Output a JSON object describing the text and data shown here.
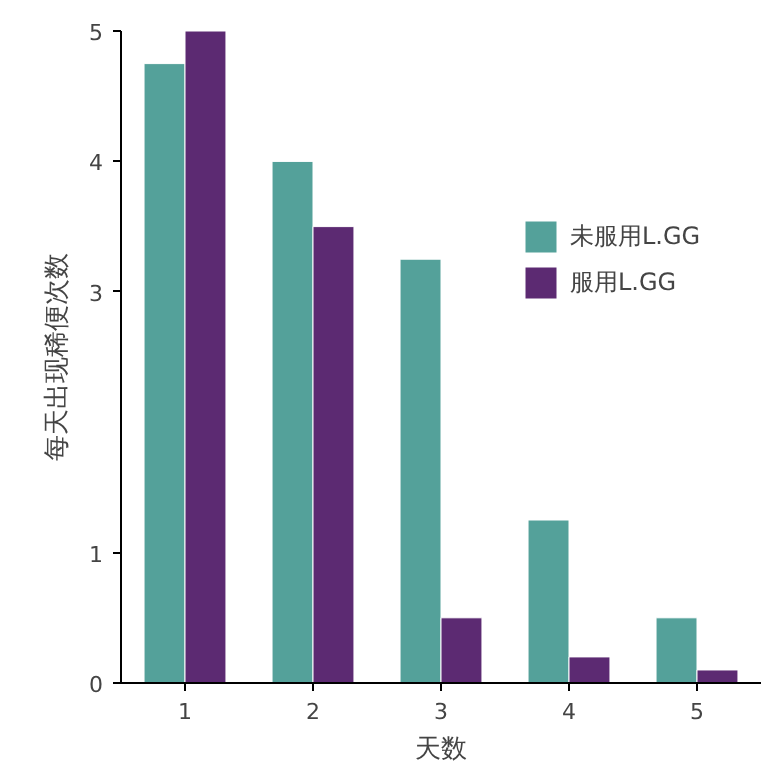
{
  "chart_data": {
    "type": "bar",
    "xlabel": "天数",
    "ylabel": "每天出现稀便次数",
    "categories": [
      "1",
      "2",
      "3",
      "4",
      "5"
    ],
    "series": [
      {
        "name": "未服用L.GG",
        "color": "#54a19a",
        "values": [
          4.75,
          4.0,
          3.25,
          1.25,
          0.5
        ]
      },
      {
        "name": "服用L.GG",
        "color": "#5c2a72",
        "values": [
          5.0,
          3.5,
          0.5,
          0.2,
          0.1
        ]
      }
    ],
    "ylim": [
      0,
      5
    ],
    "yticks": [
      0,
      1,
      3,
      4,
      5
    ],
    "grid": false,
    "legend": "top right"
  }
}
